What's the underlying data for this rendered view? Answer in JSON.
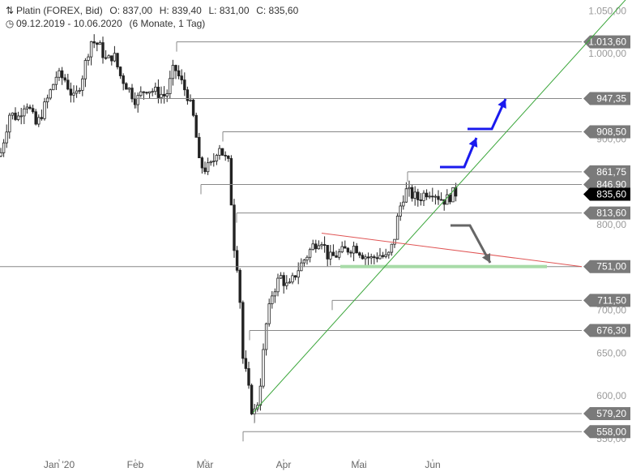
{
  "header": {
    "instrument": "Platin (FOREX, Bid)",
    "open": "O: 837,00",
    "high": "H: 839,40",
    "low": "L: 831,00",
    "close": "C: 835,60",
    "range": "09.12.2019 - 10.06.2020",
    "interval": "(6 Monate, 1 Tag)",
    "chart_icon": "candlestick-icon",
    "clock_icon": "clock-icon"
  },
  "chart_data": {
    "type": "candlestick",
    "title": "Platin (FOREX, Bid)",
    "ylim": [
      540,
      1060
    ],
    "y_ticks": [
      "1.050,00",
      "1.000,00",
      "950,00",
      "900,00",
      "850,00",
      "800,00",
      "750,00",
      "700,00",
      "650,00",
      "600,00",
      "550,00"
    ],
    "x_ticks": [
      "Jan '20",
      "Feb",
      "Mär",
      "Apr",
      "Mai",
      "Jun"
    ],
    "levels": [
      {
        "label": "1.013,60",
        "value": 1013.6
      },
      {
        "label": "947,35",
        "value": 947.35
      },
      {
        "label": "908,50",
        "value": 908.5
      },
      {
        "label": "861,75",
        "value": 861.75
      },
      {
        "label": "846,90",
        "value": 846.9
      },
      {
        "label": "813,60",
        "value": 813.6
      },
      {
        "label": "751,00",
        "value": 751.0
      },
      {
        "label": "711,50",
        "value": 711.5
      },
      {
        "label": "676,30",
        "value": 676.3
      },
      {
        "label": "579,20",
        "value": 579.2
      },
      {
        "label": "558,00",
        "value": 558.0
      }
    ],
    "last_price": {
      "label": "835,60",
      "value": 835.6
    },
    "colors": {
      "candle": "#222222",
      "level_line": "#888888",
      "level_tag": "#7a7a7a",
      "last_tag": "#000000",
      "support_trend": "#3aa63a",
      "resistance_trend": "#e05555",
      "highlight_zone": "#a8dba8",
      "arrow_up": "#1a1aee",
      "arrow_down": "#666666"
    }
  }
}
